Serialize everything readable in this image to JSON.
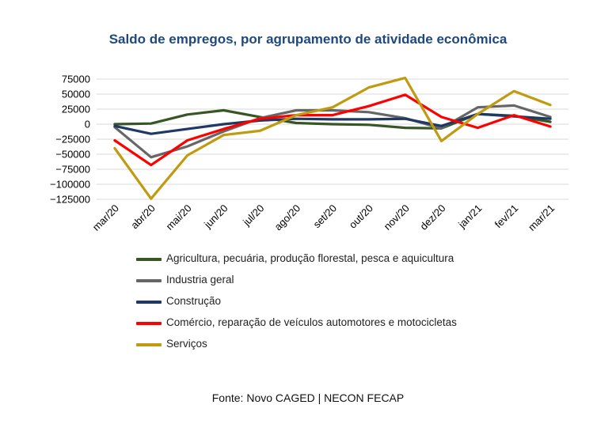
{
  "chart_data": {
    "type": "line",
    "title": "Saldo de empregos, por agrupamento de atividade econômica",
    "categories": [
      "mar/20",
      "abr/20",
      "mai/20",
      "jun/20",
      "jul/20",
      "ago/20",
      "set/20",
      "out/20",
      "nov/20",
      "dez/20",
      "jan/21",
      "fev/21",
      "mar/21"
    ],
    "y_ticks": [
      75000,
      50000,
      25000,
      0,
      -25000,
      -50000,
      -75000,
      -100000,
      -125000
    ],
    "y_tick_labels": [
      "75000",
      "50000",
      "25000",
      "0",
      "−25000",
      "−50000",
      "−75000",
      "−100000",
      "−125000"
    ],
    "ylim": [
      -125000,
      75000
    ],
    "grid": true,
    "legend_position": "bottom",
    "series": [
      {
        "name": "Agricultura, pecuária, produção florestal, pesca e aquicultura",
        "color": "#375623",
        "values": [
          0,
          1000,
          16000,
          23000,
          12000,
          2000,
          0,
          -1000,
          -6000,
          -7000,
          17000,
          14000,
          4000
        ]
      },
      {
        "name": "Industria geral",
        "color": "#666666",
        "values": [
          -5000,
          -55000,
          -37000,
          -12000,
          10000,
          23000,
          23000,
          20000,
          10000,
          -7000,
          28000,
          31000,
          12000
        ]
      },
      {
        "name": "Construção",
        "color": "#1f3864",
        "values": [
          -3000,
          -16000,
          -8000,
          0,
          6000,
          9000,
          8000,
          8000,
          9000,
          -3000,
          17000,
          13000,
          9000
        ]
      },
      {
        "name": "Comércio, reparação de veículos automotores e motocicletas",
        "color": "#ff0000",
        "values": [
          -27000,
          -68000,
          -27000,
          -8000,
          9000,
          15000,
          15000,
          30000,
          49000,
          12000,
          -6000,
          15000,
          -4000
        ]
      },
      {
        "name": "Serviços",
        "color": "#c09b10",
        "values": [
          -40000,
          -124000,
          -52000,
          -18000,
          -11000,
          15000,
          28000,
          61000,
          77000,
          -28000,
          17000,
          55000,
          32000
        ]
      }
    ]
  },
  "source": "Fonte: Novo CAGED | NECON FECAP"
}
